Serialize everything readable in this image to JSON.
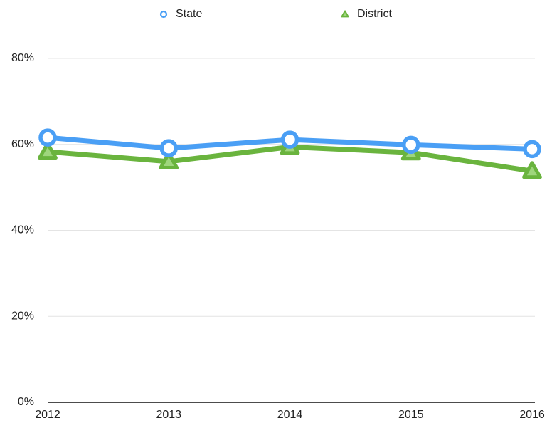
{
  "chart_data": {
    "type": "line",
    "categories": [
      "2012",
      "2013",
      "2014",
      "2015",
      "2016"
    ],
    "series": [
      {
        "name": "State",
        "color": "#4a9ff5",
        "marker": "circle",
        "values": [
          61.6,
          59.1,
          61.1,
          59.9,
          58.9
        ]
      },
      {
        "name": "District",
        "color": "#6ab43e",
        "marker": "triangle",
        "values": [
          58.3,
          56.0,
          59.4,
          58.1,
          53.8
        ]
      }
    ],
    "ylim": [
      0,
      80
    ],
    "yticks": [
      {
        "value": 0,
        "label": "0%"
      },
      {
        "value": 20,
        "label": "20%"
      },
      {
        "value": 40,
        "label": "40%"
      },
      {
        "value": 60,
        "label": "60%"
      },
      {
        "value": 80,
        "label": "80%"
      }
    ],
    "grid": true,
    "legend": "top"
  }
}
